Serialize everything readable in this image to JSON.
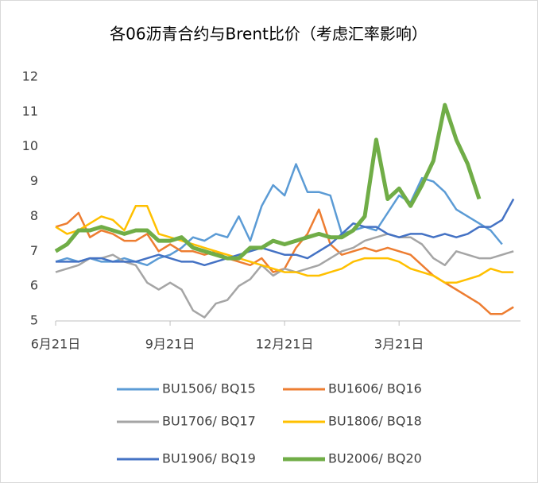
{
  "chart_data": {
    "type": "line",
    "title": "各06沥青合约与Brent比价（考虑汇率影响）",
    "categories": [
      "6月21日",
      null,
      null,
      null,
      null,
      null,
      null,
      null,
      null,
      null,
      "9月21日",
      null,
      null,
      null,
      null,
      null,
      null,
      null,
      null,
      null,
      "12月21日",
      null,
      null,
      null,
      null,
      null,
      null,
      null,
      null,
      null,
      "3月21日",
      null,
      null,
      null,
      null,
      null,
      null,
      null,
      null,
      null,
      null
    ],
    "ylim": [
      5,
      12
    ],
    "yticks": [
      5,
      6,
      7,
      8,
      9,
      10,
      11,
      12
    ],
    "series": [
      {
        "name": "BU1506/ BQ15",
        "color": "#5b9bd5",
        "values": [
          6.7,
          6.8,
          6.7,
          6.8,
          6.7,
          6.7,
          6.8,
          6.7,
          6.6,
          6.8,
          6.9,
          7.1,
          7.4,
          7.3,
          7.5,
          7.4,
          8.0,
          7.3,
          8.3,
          8.9,
          8.6,
          9.5,
          8.7,
          8.7,
          8.6,
          7.5,
          7.6,
          7.7,
          7.6,
          8.1,
          8.6,
          8.4,
          9.1,
          9.0,
          8.7,
          8.2,
          8.0,
          7.8,
          7.6,
          7.2,
          null
        ]
      },
      {
        "name": "BU1606/ BQ16",
        "color": "#ed7d31",
        "values": [
          7.7,
          7.8,
          8.1,
          7.4,
          7.6,
          7.5,
          7.3,
          7.3,
          7.5,
          7.0,
          7.2,
          7.0,
          7.0,
          6.9,
          7.0,
          6.8,
          6.7,
          6.6,
          6.8,
          6.4,
          6.5,
          7.1,
          7.5,
          8.2,
          7.2,
          6.9,
          7.0,
          7.1,
          7.0,
          7.1,
          7.0,
          6.9,
          6.6,
          6.3,
          6.1,
          5.9,
          5.7,
          5.5,
          5.2,
          5.2,
          5.4
        ]
      },
      {
        "name": "BU1706/ BQ17",
        "color": "#a5a5a5",
        "values": [
          6.4,
          6.5,
          6.6,
          6.8,
          6.8,
          6.9,
          6.7,
          6.6,
          6.1,
          5.9,
          6.1,
          5.9,
          5.3,
          5.1,
          5.5,
          5.6,
          6.0,
          6.2,
          6.6,
          6.3,
          6.5,
          6.4,
          6.5,
          6.6,
          6.8,
          7.0,
          7.1,
          7.3,
          7.4,
          7.5,
          7.4,
          7.4,
          7.2,
          6.8,
          6.6,
          7.0,
          6.9,
          6.8,
          6.8,
          6.9,
          7.0
        ]
      },
      {
        "name": "BU1806/ BQ18",
        "color": "#ffc000",
        "values": [
          7.7,
          7.5,
          7.6,
          7.8,
          8.0,
          7.9,
          7.6,
          8.3,
          8.3,
          7.5,
          7.4,
          7.3,
          7.2,
          7.1,
          7.0,
          6.9,
          6.8,
          6.7,
          6.6,
          6.5,
          6.4,
          6.4,
          6.3,
          6.3,
          6.4,
          6.5,
          6.7,
          6.8,
          6.8,
          6.8,
          6.7,
          6.5,
          6.4,
          6.3,
          6.1,
          6.1,
          6.2,
          6.3,
          6.5,
          6.4,
          6.4
        ]
      },
      {
        "name": "BU1906/ BQ19",
        "color": "#4472c4",
        "values": [
          6.7,
          6.7,
          6.7,
          6.8,
          6.8,
          6.7,
          6.7,
          6.7,
          6.8,
          6.9,
          6.8,
          6.7,
          6.7,
          6.6,
          6.7,
          6.8,
          6.9,
          7.0,
          7.1,
          7.0,
          6.9,
          6.9,
          6.8,
          7.0,
          7.2,
          7.5,
          7.8,
          7.7,
          7.7,
          7.5,
          7.4,
          7.5,
          7.5,
          7.4,
          7.5,
          7.4,
          7.5,
          7.7,
          7.7,
          7.9,
          8.5
        ]
      },
      {
        "name": "BU2006/ BQ20",
        "color": "#70ad47",
        "width": 5,
        "values": [
          7.0,
          7.2,
          7.6,
          7.6,
          7.7,
          7.6,
          7.5,
          7.6,
          7.6,
          7.3,
          7.3,
          7.4,
          7.1,
          7.0,
          6.9,
          6.8,
          6.8,
          7.1,
          7.1,
          7.3,
          7.2,
          7.3,
          7.4,
          7.5,
          7.4,
          7.4,
          7.6,
          8.0,
          10.2,
          8.5,
          8.8,
          8.3,
          8.9,
          9.6,
          11.2,
          10.2,
          9.5,
          8.5,
          null,
          null,
          null
        ]
      }
    ]
  }
}
